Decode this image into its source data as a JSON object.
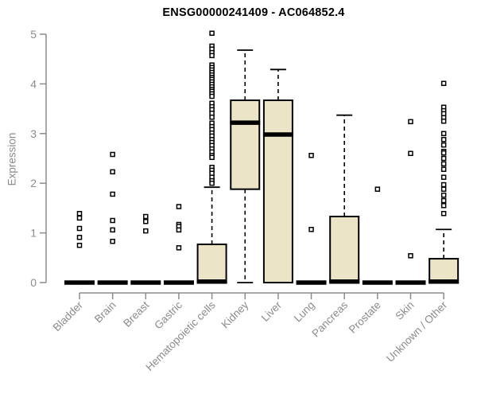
{
  "colors": {
    "background": "#ffffff",
    "axis": "#8b8b8b",
    "tick_label": "#8b8b8b",
    "title": "#000000",
    "box_fill": "#ece4c6",
    "box_border": "#000000",
    "median": "#000000",
    "whisker": "#000000",
    "outlier_stroke": "#000000",
    "outlier_fill": "#ffffff"
  },
  "chart_data": {
    "type": "boxplot",
    "title": "ENSG00000241409 - AC064852.4",
    "xlabel": "",
    "ylabel": "Expression",
    "ylim": [
      0,
      5
    ],
    "yticks": [
      0,
      1,
      2,
      3,
      4,
      5
    ],
    "grid": false,
    "legend": "none",
    "categories": [
      "Bladder",
      "Brain",
      "Breast",
      "Gastric",
      "Hematopoietic cells",
      "Kidney",
      "Liver",
      "Lung",
      "Pancreas",
      "Prostate",
      "Skin",
      "Unknown / Other"
    ],
    "series": [
      {
        "category": "Bladder",
        "whisker_low": 0,
        "q1": 0,
        "median": 0,
        "q3": 0,
        "whisker_high": 0,
        "outliers": [
          1.39,
          1.3,
          1.09,
          0.91,
          0.75
        ]
      },
      {
        "category": "Brain",
        "whisker_low": 0,
        "q1": 0,
        "median": 0,
        "q3": 0,
        "whisker_high": 0,
        "outliers": [
          2.58,
          2.23,
          1.78,
          1.25,
          1.06,
          0.83
        ]
      },
      {
        "category": "Breast",
        "whisker_low": 0,
        "q1": 0,
        "median": 0,
        "q3": 0,
        "whisker_high": 0,
        "outliers": [
          1.33,
          1.23,
          1.04
        ]
      },
      {
        "category": "Gastric",
        "whisker_low": 0,
        "q1": 0,
        "median": 0,
        "q3": 0,
        "whisker_high": 0,
        "outliers": [
          1.53,
          1.17,
          1.13,
          1.06,
          0.7
        ]
      },
      {
        "category": "Hematopoietic cells",
        "whisker_low": 0,
        "q1": 0,
        "median": 0.02,
        "q3": 0.77,
        "whisker_high": 1.92,
        "outliers": [
          5.02,
          4.76,
          4.7,
          4.63,
          4.57,
          4.38,
          4.33,
          4.28,
          4.23,
          4.18,
          4.13,
          4.09,
          4.04,
          3.99,
          3.94,
          3.89,
          3.85,
          3.8,
          3.75,
          3.61,
          3.54,
          3.48,
          3.41,
          3.33,
          3.21,
          3.14,
          3.08,
          3.01,
          2.95,
          2.88,
          2.82,
          2.76,
          2.69,
          2.63,
          2.56,
          2.52,
          2.32,
          2.26,
          2.2,
          2.12,
          2.05,
          2.0
        ]
      },
      {
        "category": "Kidney",
        "whisker_low": 0,
        "q1": 1.88,
        "median": 3.22,
        "q3": 3.67,
        "whisker_high": 4.68,
        "outliers": []
      },
      {
        "category": "Liver",
        "whisker_low": 0,
        "q1": 0,
        "median": 2.98,
        "q3": 3.67,
        "whisker_high": 4.29,
        "outliers": []
      },
      {
        "category": "Lung",
        "whisker_low": 0,
        "q1": 0,
        "median": 0,
        "q3": 0,
        "whisker_high": 0,
        "outliers": [
          2.56,
          1.07
        ]
      },
      {
        "category": "Pancreas",
        "whisker_low": 0,
        "q1": 0,
        "median": 0.02,
        "q3": 1.33,
        "whisker_high": 3.37,
        "outliers": []
      },
      {
        "category": "Prostate",
        "whisker_low": 0,
        "q1": 0,
        "median": 0,
        "q3": 0,
        "whisker_high": 0,
        "outliers": [
          1.88
        ]
      },
      {
        "category": "Skin",
        "whisker_low": 0,
        "q1": 0,
        "median": 0,
        "q3": 0,
        "whisker_high": 0,
        "outliers": [
          3.24,
          2.6,
          0.54
        ]
      },
      {
        "category": "Unknown / Other",
        "whisker_low": 0,
        "q1": 0,
        "median": 0.02,
        "q3": 0.48,
        "whisker_high": 1.07,
        "outliers": [
          4.01,
          3.53,
          3.46,
          3.4,
          3.32,
          3.25,
          3.0,
          2.88,
          2.77,
          2.64,
          2.61,
          2.5,
          2.39,
          2.28,
          2.12,
          1.97,
          1.88,
          1.76,
          1.65,
          1.55,
          1.39
        ]
      }
    ]
  }
}
